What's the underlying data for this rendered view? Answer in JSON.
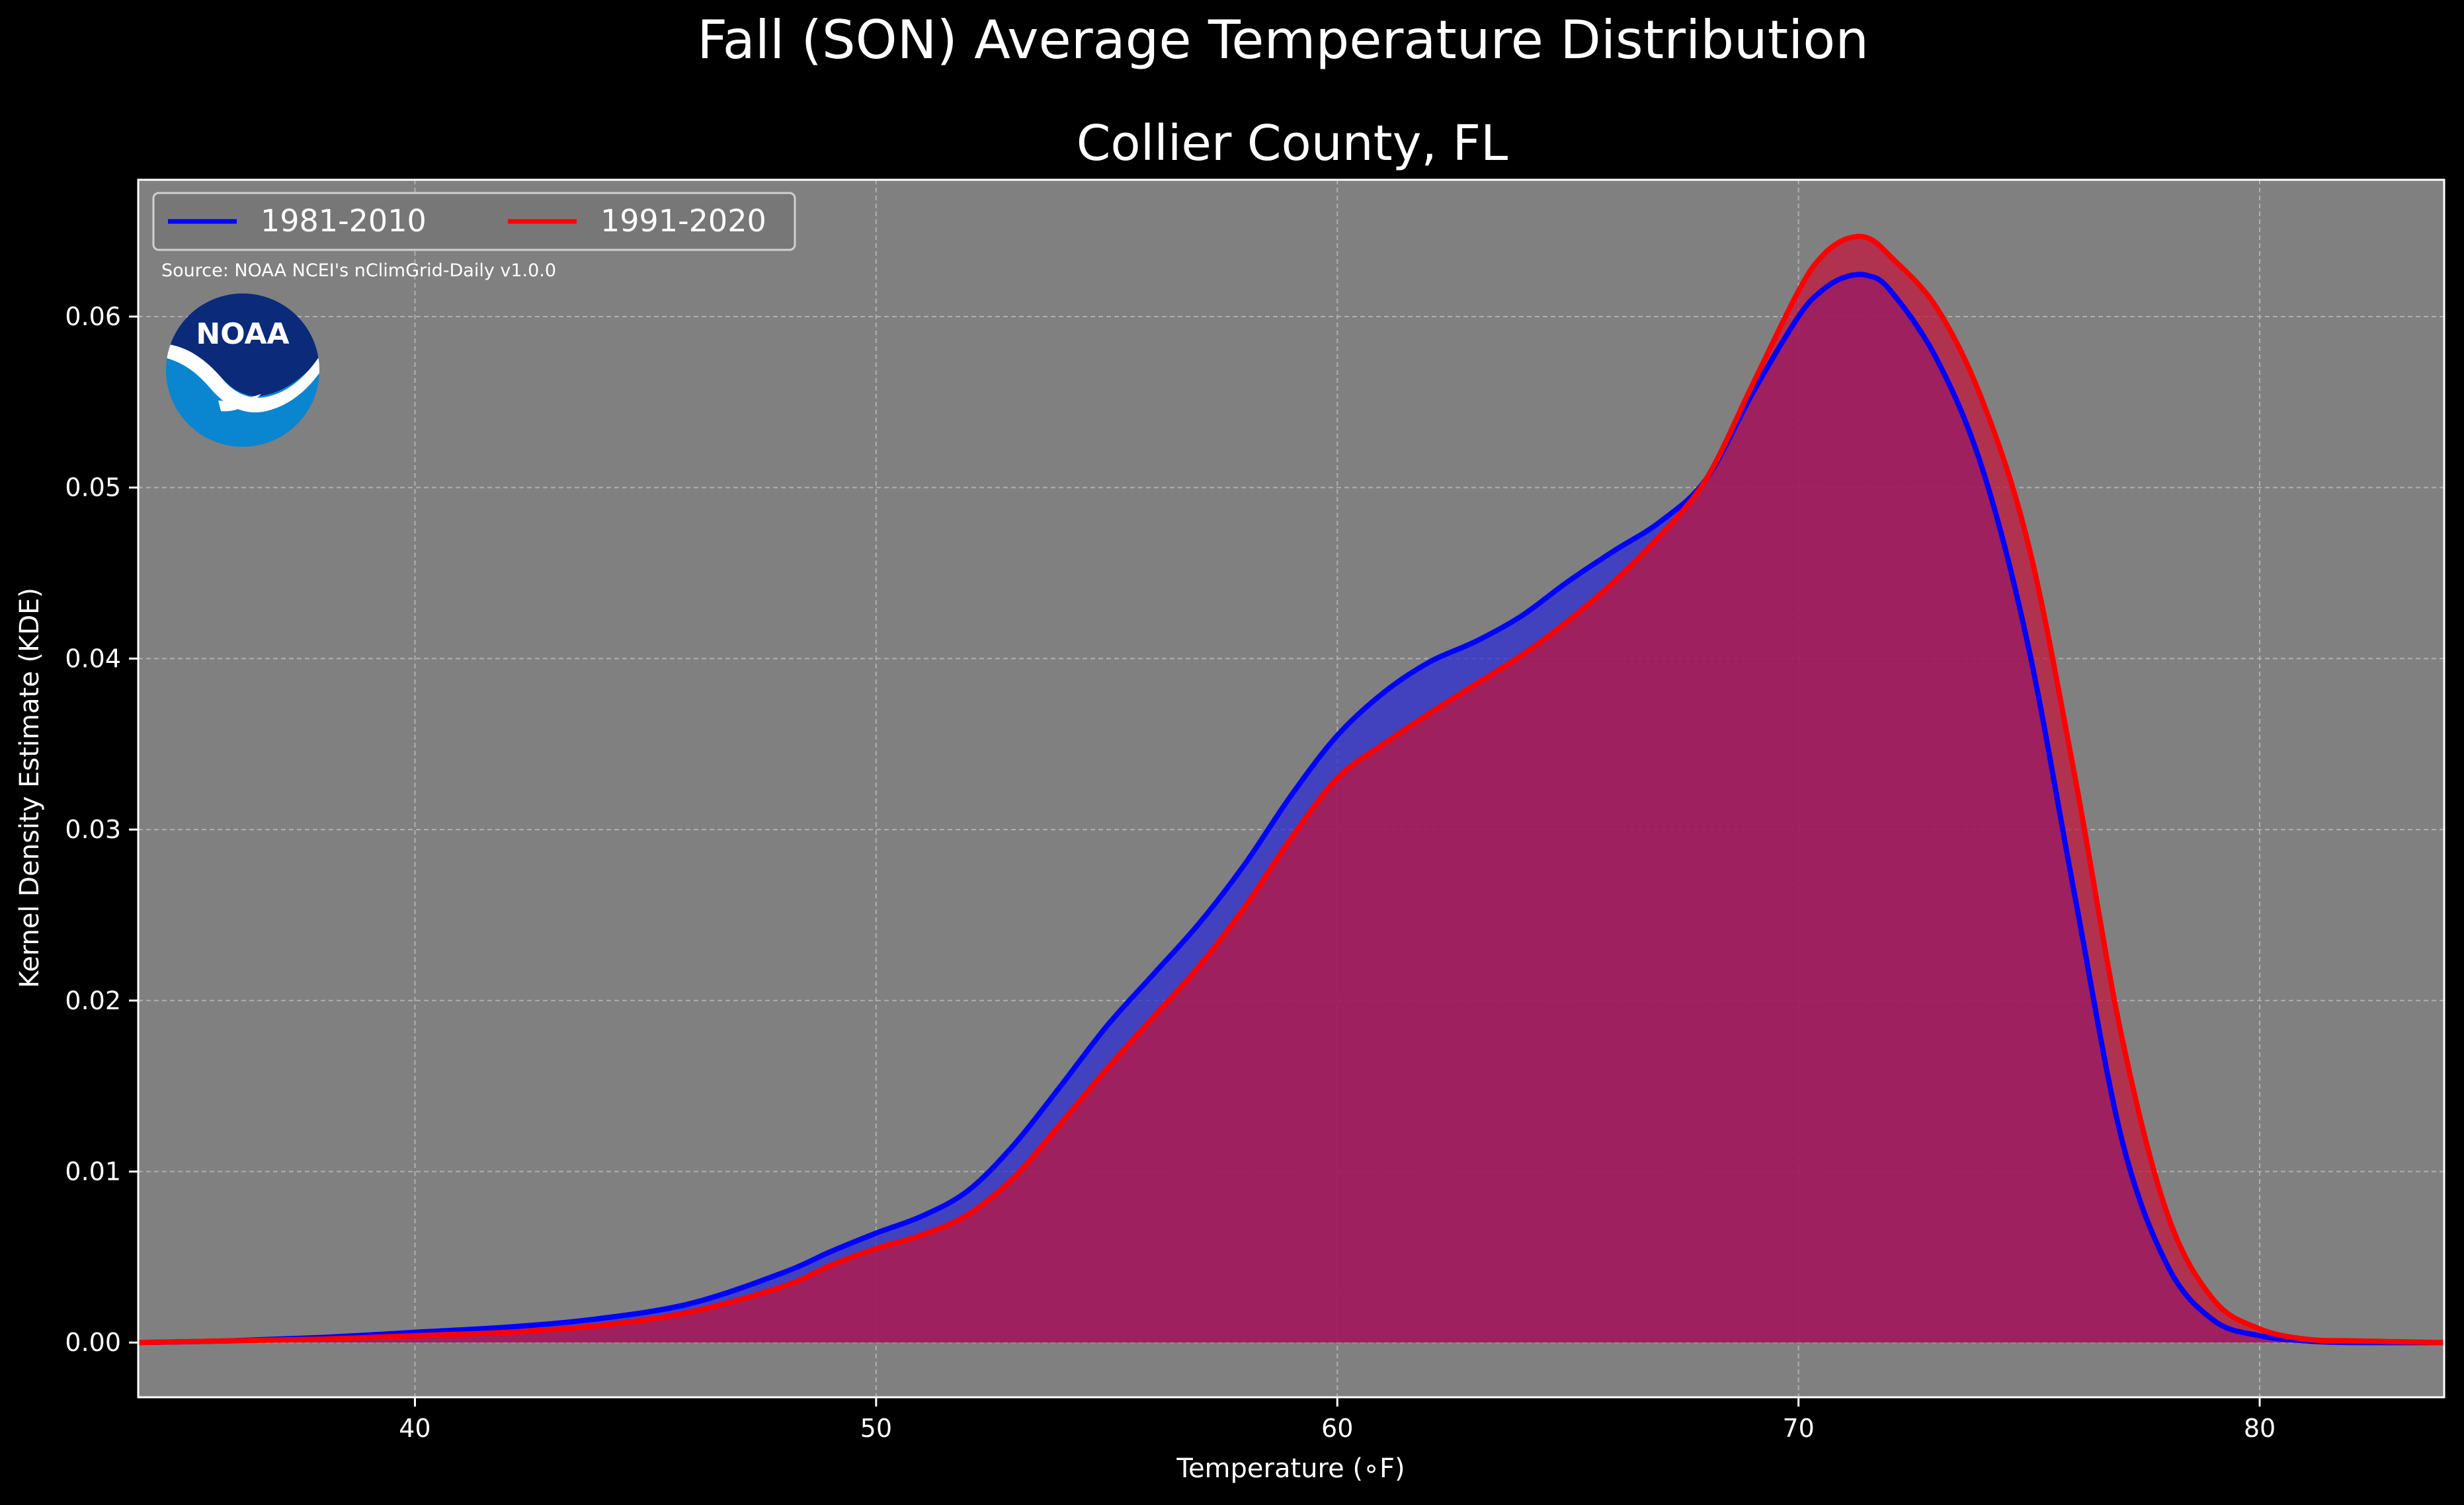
{
  "chart_data": {
    "type": "area",
    "title": "Fall (SON) Average Temperature Distribution",
    "subtitle": "Collier County, FL",
    "xlabel": "Temperature (∘F)",
    "ylabel": "Kernel Density Estimate (KDE)",
    "xlim": [
      34,
      84
    ],
    "ylim": [
      -0.0032,
      0.068
    ],
    "xticks": [
      40,
      50,
      60,
      70,
      80
    ],
    "yticks": [
      0.0,
      0.01,
      0.02,
      0.03,
      0.04,
      0.05,
      0.06
    ],
    "xtick_labels": [
      "40",
      "50",
      "60",
      "70",
      "80"
    ],
    "ytick_labels": [
      "0.00",
      "0.01",
      "0.02",
      "0.03",
      "0.04",
      "0.05",
      "0.06"
    ],
    "grid": true,
    "legend_position": "top-left",
    "annotation": "Source: NOAA NCEI's nClimGrid-Daily v1.0.0",
    "logo_text": "NOAA",
    "series": [
      {
        "name": "1981-2010",
        "color": "#0000ff",
        "fill": "#2a2ad6",
        "x": [
          34,
          36,
          38,
          40,
          42,
          44,
          46,
          48,
          49,
          50,
          51,
          52,
          53,
          54,
          55,
          56,
          57,
          58,
          59,
          60,
          61,
          62,
          63,
          64,
          65,
          66,
          67,
          68,
          69,
          70,
          70.5,
          71,
          71.5,
          72,
          73,
          74,
          75,
          76,
          77,
          78,
          79,
          80,
          81,
          82,
          84
        ],
        "y": [
          0.0,
          0.0001,
          0.0003,
          0.0006,
          0.0009,
          0.0014,
          0.0023,
          0.0041,
          0.0053,
          0.0064,
          0.0074,
          0.0089,
          0.0116,
          0.015,
          0.0185,
          0.0215,
          0.0245,
          0.028,
          0.032,
          0.0355,
          0.038,
          0.0398,
          0.041,
          0.0425,
          0.0445,
          0.0463,
          0.048,
          0.0505,
          0.0555,
          0.06,
          0.0615,
          0.0623,
          0.0624,
          0.0615,
          0.0575,
          0.051,
          0.0405,
          0.026,
          0.012,
          0.0045,
          0.0013,
          0.0004,
          0.0001,
          0.0,
          0.0
        ]
      },
      {
        "name": "1991-2020",
        "color": "#ff0000",
        "fill": "#c4143a",
        "x": [
          34,
          36,
          38,
          40,
          42,
          44,
          46,
          48,
          49,
          50,
          51,
          52,
          53,
          54,
          55,
          56,
          57,
          58,
          59,
          60,
          61,
          62,
          63,
          64,
          65,
          66,
          67,
          68,
          69,
          70,
          70.5,
          71,
          71.5,
          72,
          73,
          74,
          75,
          76,
          77,
          78,
          79,
          80,
          81,
          82,
          84
        ],
        "y": [
          0.0,
          0.0001,
          0.0002,
          0.0004,
          0.0006,
          0.001,
          0.0018,
          0.0033,
          0.0045,
          0.0055,
          0.0063,
          0.0075,
          0.0097,
          0.0128,
          0.016,
          0.019,
          0.022,
          0.0255,
          0.0295,
          0.033,
          0.035,
          0.0368,
          0.0385,
          0.0402,
          0.0422,
          0.0445,
          0.0472,
          0.0505,
          0.056,
          0.0615,
          0.0635,
          0.0645,
          0.0646,
          0.0635,
          0.0605,
          0.055,
          0.0465,
          0.033,
          0.018,
          0.0075,
          0.0025,
          0.0008,
          0.0002,
          0.0001,
          0.0
        ]
      }
    ]
  }
}
